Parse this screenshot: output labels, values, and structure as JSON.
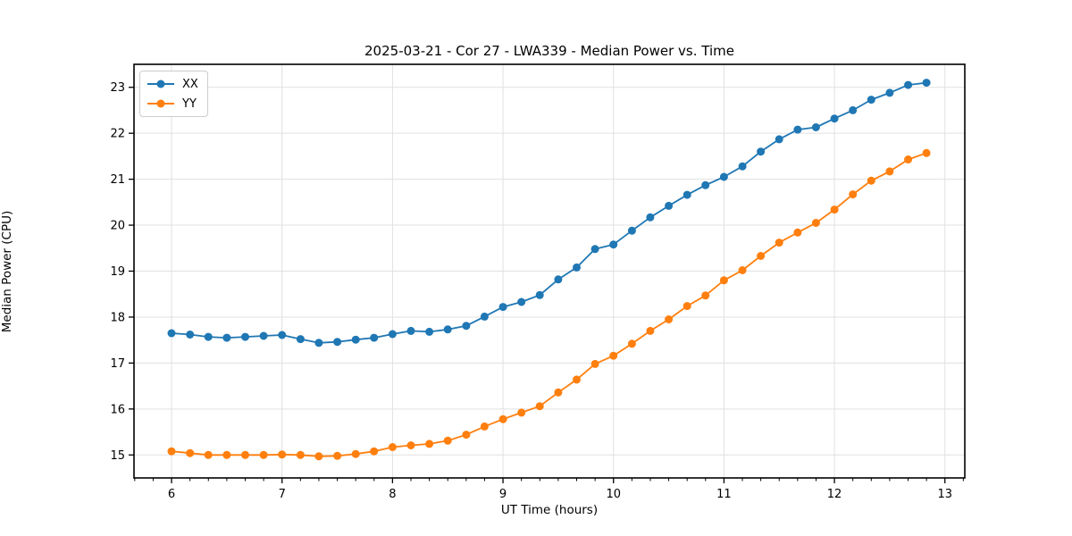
{
  "figure": {
    "title": "2025-03-21 - Cor 27 - LWA339 - Median Power vs. Time",
    "xlabel": "UT Time (hours)",
    "ylabel": "Median Power (CPU)"
  },
  "chart_data": {
    "type": "line",
    "title": "2025-03-21 - Cor 27 - LWA339 - Median Power vs. Time",
    "xlabel": "UT Time (hours)",
    "ylabel": "Median Power (CPU)",
    "xlim": [
      5.66,
      13.18
    ],
    "ylim": [
      14.5,
      23.5
    ],
    "x_ticks": [
      6,
      7,
      8,
      9,
      10,
      11,
      12,
      13
    ],
    "y_ticks": [
      15,
      16,
      17,
      18,
      19,
      20,
      21,
      22,
      23
    ],
    "x_minor_step": 0.16667,
    "grid": true,
    "grid_color": "#e0e0e0",
    "legend_position": "upper-left",
    "x": [
      6.0,
      6.167,
      6.333,
      6.5,
      6.667,
      6.833,
      7.0,
      7.167,
      7.333,
      7.5,
      7.667,
      7.833,
      8.0,
      8.167,
      8.333,
      8.5,
      8.667,
      8.833,
      9.0,
      9.167,
      9.333,
      9.5,
      9.667,
      9.833,
      10.0,
      10.167,
      10.333,
      10.5,
      10.667,
      10.833,
      11.0,
      11.167,
      11.333,
      11.5,
      11.667,
      11.833,
      12.0,
      12.167,
      12.333,
      12.5,
      12.667,
      12.833
    ],
    "series": [
      {
        "name": "XX",
        "color": "#1f77b4",
        "values": [
          17.65,
          17.62,
          17.57,
          17.55,
          17.57,
          17.59,
          17.61,
          17.52,
          17.44,
          17.46,
          17.51,
          17.55,
          17.63,
          17.7,
          17.68,
          17.73,
          17.81,
          18.01,
          18.22,
          18.33,
          18.48,
          18.82,
          19.08,
          19.48,
          19.58,
          19.88,
          20.17,
          20.42,
          20.66,
          20.87,
          21.05,
          21.28,
          21.6,
          21.87,
          22.08,
          22.13,
          22.32,
          22.5,
          22.73,
          22.88,
          23.05,
          23.1
        ]
      },
      {
        "name": "YY",
        "color": "#ff7f0e",
        "values": [
          15.08,
          15.04,
          15.0,
          15.0,
          15.0,
          15.0,
          15.01,
          15.0,
          14.97,
          14.98,
          15.02,
          15.08,
          15.17,
          15.21,
          15.24,
          15.31,
          15.44,
          15.62,
          15.78,
          15.92,
          16.06,
          16.36,
          16.64,
          16.98,
          17.16,
          17.42,
          17.7,
          17.95,
          18.24,
          18.47,
          18.8,
          19.02,
          19.33,
          19.62,
          19.84,
          20.05,
          20.34,
          20.67,
          20.97,
          21.17,
          21.43,
          21.57
        ]
      }
    ]
  }
}
